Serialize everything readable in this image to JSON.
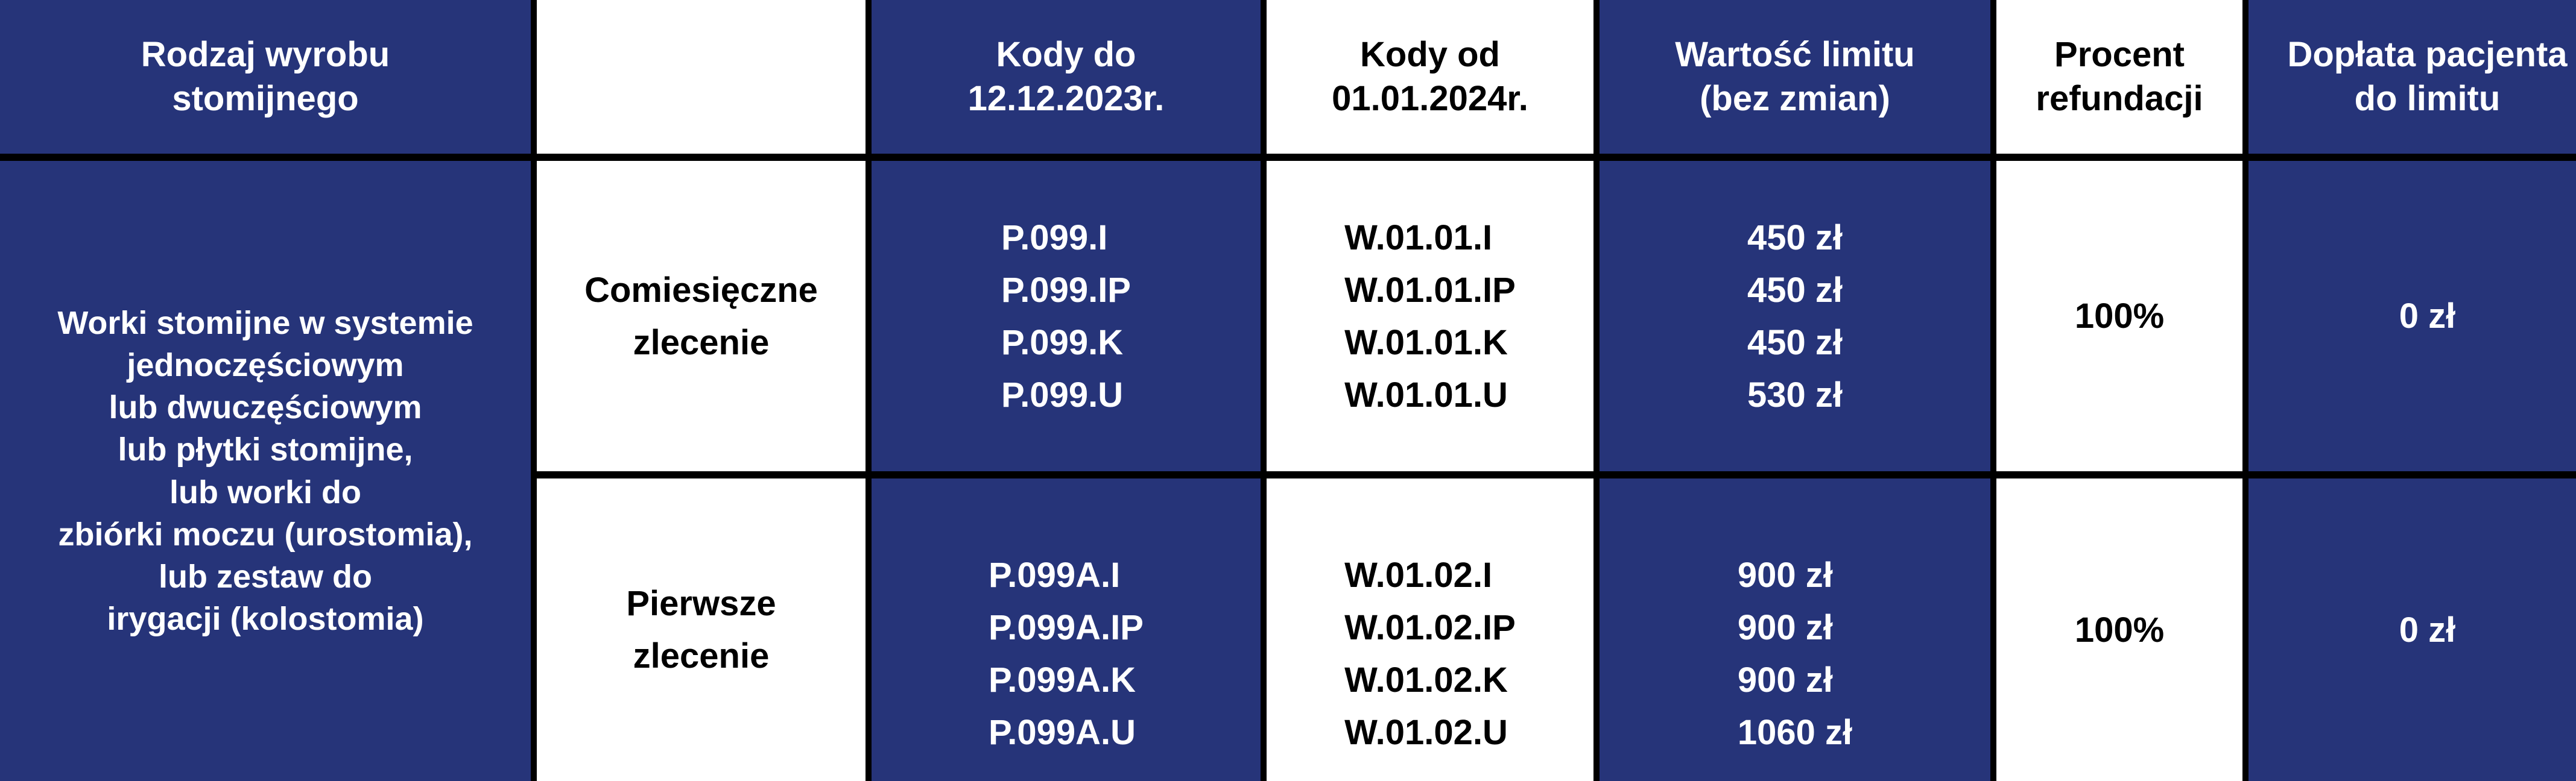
{
  "header": {
    "col1": "Rodzaj wyrobu\nstomijnego",
    "col2": "",
    "col3": "Kody do\n12.12.2023r.",
    "col4": "Kody od\n01.01.2024r.",
    "col5": "Wartość limitu\n(bez zmian)",
    "col6": "Procent\nrefundacji",
    "col7": "Dopłata pacjenta\ndo limitu"
  },
  "product_type": "Worki stomijne w systemie\njednoczęściowym\nlub dwuczęściowym\nlub płytki stomijne,\nlub worki do\nzbiórki moczu (urostomia),\nlub zestaw do\nirygacji (kolostomia)",
  "rows": [
    {
      "order": "Comiesięczne\nzlecenie",
      "old_codes": "P.099.I\nP.099.IP\nP.099.K\nP.099.U",
      "new_codes": "W.01.01.I\nW.01.01.IP\nW.01.01.K\nW.01.01.U",
      "limits": "450 zł\n450 zł\n450 zł\n530 zł",
      "refund": "100%",
      "copay": "0 zł"
    },
    {
      "order": "Pierwsze\nzlecenie",
      "old_codes": "P.099A.I\nP.099A.IP\nP.099A.K\nP.099A.U",
      "new_codes": "W.01.02.I\nW.01.02.IP\nW.01.02.K\nW.01.02.U",
      "limits": "900 zł\n900 zł\n900 zł\n1060 zł",
      "refund": "100%",
      "copay": "0 zł"
    }
  ],
  "colors": {
    "navy": "#263479",
    "white": "#ffffff",
    "border": "#000000"
  }
}
